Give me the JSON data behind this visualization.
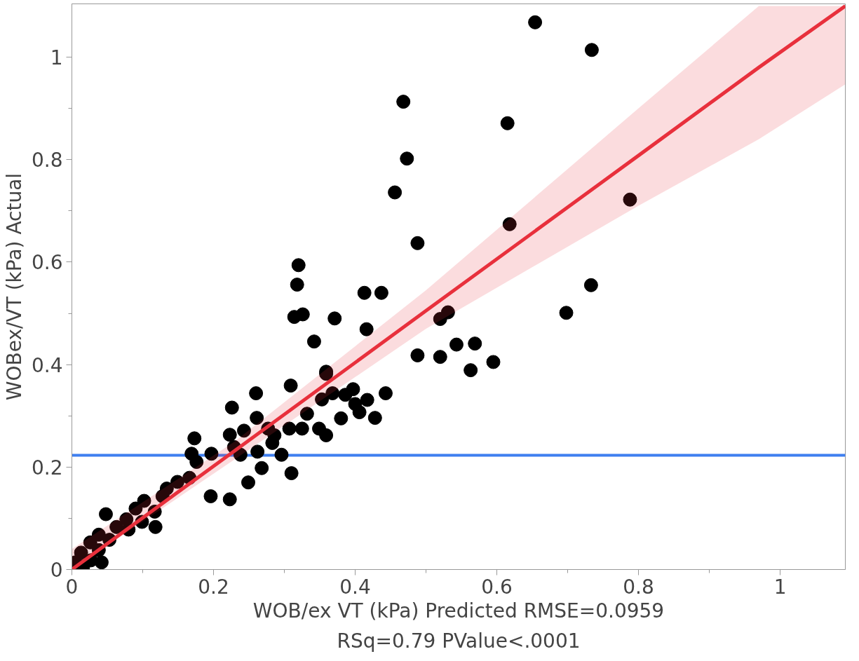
{
  "chart_data": {
    "type": "scatter",
    "xlabel": "WOB/ex VT (kPa) Predicted RMSE=0.0959",
    "ylabel": "WOBex/VT (kPa) Actual",
    "annotations": [
      "RSq=0.79 PValue<.0001"
    ],
    "xlim": [
      0,
      1.092
    ],
    "ylim": [
      0,
      1.104
    ],
    "xticks": [
      0,
      {
        "value": 0.1,
        "label": null
      },
      0.2,
      {
        "value": 0.3,
        "label": null
      },
      0.4,
      {
        "value": 0.5,
        "label": null
      },
      0.6,
      {
        "value": 0.7,
        "label": null
      },
      0.8,
      {
        "value": 0.9,
        "label": null
      },
      1
    ],
    "yticks": [
      0,
      {
        "value": 0.1,
        "label": null
      },
      0.2,
      {
        "value": 0.3,
        "label": null
      },
      0.4,
      {
        "value": 0.5,
        "label": null
      },
      0.6,
      {
        "value": 0.7,
        "label": null
      },
      0.8,
      {
        "value": 0.9,
        "label": null
      },
      1
    ],
    "grid": false,
    "marker": "circle",
    "ref_lines": [
      {
        "axis": "y",
        "value": 0.223,
        "color": "#3f7ff0"
      }
    ],
    "series": [
      {
        "color": "#000000",
        "x": [
          0.654,
          0.734,
          0.468,
          0.615,
          0.473,
          0.456,
          0.788,
          0.618,
          0.488,
          0.437,
          0.733,
          0.698,
          0.52,
          0.531,
          0.32,
          0.318,
          0.413,
          0.314,
          0.326,
          0.371,
          0.416,
          0.342,
          0.543,
          0.569,
          0.488,
          0.52,
          0.595,
          0.563,
          0.359,
          0.359,
          0.309,
          0.26,
          0.226,
          0.353,
          0.368,
          0.386,
          0.397,
          0.4,
          0.417,
          0.406,
          0.428,
          0.443,
          0.38,
          0.332,
          0.261,
          0.277,
          0.307,
          0.325,
          0.349,
          0.359,
          0.286,
          0.283,
          0.173,
          0.223,
          0.243,
          0.169,
          0.296,
          0.262,
          0.176,
          0.197,
          0.229,
          0.238,
          0.268,
          0.31,
          0.249,
          0.223,
          0.196,
          0.149,
          0.166,
          0.134,
          0.128,
          0.102,
          0.117,
          0.09,
          0.118,
          0.099,
          0.077,
          0.08,
          0.063,
          0.048,
          0.038,
          0.053,
          0.026,
          0.038,
          0.013,
          0.027,
          0.005,
          0.042,
          0.016
        ],
        "values": [
          1.068,
          1.014,
          0.913,
          0.871,
          0.802,
          0.736,
          0.722,
          0.674,
          0.637,
          0.54,
          0.555,
          0.501,
          0.489,
          0.502,
          0.594,
          0.556,
          0.54,
          0.493,
          0.498,
          0.49,
          0.469,
          0.445,
          0.439,
          0.441,
          0.418,
          0.415,
          0.405,
          0.389,
          0.386,
          0.382,
          0.359,
          0.344,
          0.316,
          0.332,
          0.344,
          0.341,
          0.352,
          0.323,
          0.331,
          0.307,
          0.296,
          0.344,
          0.295,
          0.304,
          0.296,
          0.275,
          0.275,
          0.275,
          0.275,
          0.262,
          0.262,
          0.247,
          0.256,
          0.263,
          0.271,
          0.226,
          0.224,
          0.23,
          0.21,
          0.226,
          0.239,
          0.224,
          0.198,
          0.188,
          0.17,
          0.137,
          0.143,
          0.171,
          0.179,
          0.158,
          0.143,
          0.134,
          0.113,
          0.119,
          0.083,
          0.093,
          0.098,
          0.078,
          0.083,
          0.108,
          0.068,
          0.058,
          0.053,
          0.038,
          0.033,
          0.018,
          0.014,
          0.014,
          0.006
        ]
      },
      {
        "type": "line",
        "marker": "none",
        "color": "#e8303c",
        "x": [
          0,
          0.23,
          0.5,
          0.8,
          0.97,
          1.092
        ],
        "values": [
          0,
          0.232,
          0.505,
          0.808,
          0.98,
          1.1
        ],
        "lower": [
          0,
          0.215,
          0.47,
          0.71,
          0.84,
          0.947
        ],
        "upper": [
          0.04,
          0.25,
          0.545,
          0.9,
          1.1,
          1.1
        ]
      }
    ]
  }
}
